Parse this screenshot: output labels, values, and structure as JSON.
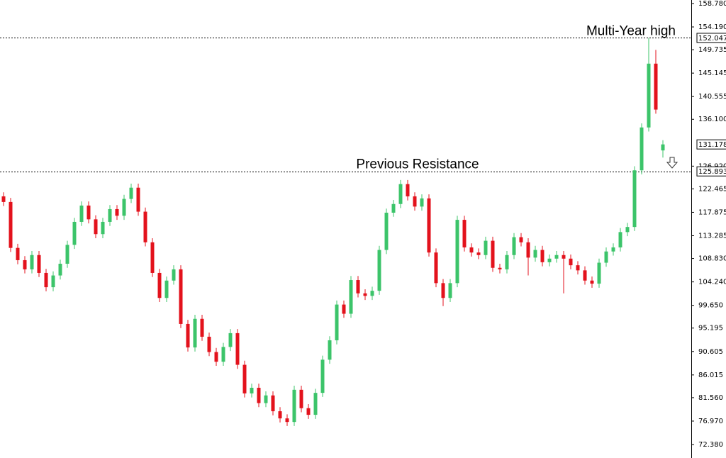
{
  "chart_data": {
    "type": "candlestick",
    "up_color": "#3cc46a",
    "down_color": "#e3121c",
    "ylim": [
      69.74,
      159.47
    ],
    "yticks": [
      {
        "value": 158.78,
        "label": "158.780"
      },
      {
        "value": 154.19,
        "label": "154.190"
      },
      {
        "value": 149.735,
        "label": "149.735"
      },
      {
        "value": 145.145,
        "label": "145.145"
      },
      {
        "value": 140.555,
        "label": "140.555"
      },
      {
        "value": 136.1,
        "label": "136.100"
      },
      {
        "value": 126.92,
        "label": "126.920"
      },
      {
        "value": 122.465,
        "label": "122.465"
      },
      {
        "value": 117.875,
        "label": "117.875"
      },
      {
        "value": 113.285,
        "label": "113.285"
      },
      {
        "value": 108.83,
        "label": "108.830"
      },
      {
        "value": 104.24,
        "label": "104.240"
      },
      {
        "value": 99.65,
        "label": "99.650"
      },
      {
        "value": 95.195,
        "label": "95.195"
      },
      {
        "value": 90.605,
        "label": "90.605"
      },
      {
        "value": 86.015,
        "label": "86.015"
      },
      {
        "value": 81.56,
        "label": "81.560"
      },
      {
        "value": 76.97,
        "label": "76.970"
      },
      {
        "value": 72.38,
        "label": "72.380"
      }
    ],
    "levels": [
      {
        "value": 152.047,
        "annotation": "Multi-Year high"
      },
      {
        "value": 125.893,
        "annotation": "Previous Resistance"
      }
    ],
    "open": [
      121.0,
      119.9,
      110.9,
      108.5,
      106.7,
      109.5,
      106.0,
      103.2,
      105.5,
      107.8,
      111.5,
      116.0,
      119.2,
      116.5,
      113.6,
      116.0,
      118.5,
      117.2,
      120.5,
      122.7,
      118.0,
      112.0,
      106.0,
      101.1,
      104.5,
      106.7,
      96.0,
      91.4,
      97.0,
      93.5,
      90.5,
      88.6,
      91.5,
      94.2,
      88.0,
      82.4,
      83.5,
      80.5,
      82.0,
      78.9,
      77.5,
      76.8,
      83.1,
      79.5,
      78.2,
      82.5,
      89.0,
      92.8,
      99.8,
      98.0,
      104.6,
      102.0,
      101.5,
      102.5,
      110.5,
      117.8,
      119.5,
      123.4,
      121.0,
      119.0,
      120.6,
      110.0,
      104.0,
      101.1,
      104.0,
      116.4,
      111.0,
      110.0,
      109.5,
      112.3,
      107.0,
      106.7,
      109.5,
      113.0,
      112.0,
      109.0,
      110.5,
      108.1,
      108.8,
      109.5,
      108.8,
      107.5,
      106.5,
      104.5,
      103.9,
      108.0,
      110.2,
      111.0,
      114.0,
      115.0,
      126.1,
      134.5,
      147.0,
      130.0
    ],
    "high": [
      121.8,
      120.7,
      111.7,
      109.3,
      110.3,
      110.3,
      106.8,
      106.3,
      108.6,
      112.3,
      116.8,
      120.0,
      120.0,
      117.3,
      116.8,
      119.3,
      119.3,
      121.3,
      123.5,
      123.5,
      118.8,
      112.8,
      106.8,
      105.3,
      107.5,
      107.5,
      96.8,
      97.8,
      97.8,
      94.3,
      91.3,
      92.3,
      95.0,
      95.0,
      88.8,
      84.3,
      84.3,
      82.8,
      82.8,
      79.7,
      78.3,
      83.9,
      83.9,
      80.3,
      83.3,
      89.8,
      93.6,
      100.6,
      100.6,
      105.4,
      105.4,
      102.8,
      103.3,
      111.3,
      118.6,
      120.3,
      124.2,
      124.2,
      121.8,
      121.4,
      121.4,
      110.8,
      104.8,
      104.8,
      117.2,
      117.2,
      111.8,
      110.8,
      113.1,
      113.1,
      107.8,
      110.3,
      113.8,
      113.8,
      112.8,
      111.3,
      111.3,
      109.6,
      110.3,
      110.3,
      109.6,
      108.3,
      107.3,
      105.3,
      108.8,
      111.0,
      111.8,
      114.8,
      115.8,
      126.9,
      135.3,
      152.047,
      149.7,
      132.0
    ],
    "low": [
      119.1,
      110.1,
      107.7,
      105.9,
      105.9,
      105.2,
      102.4,
      102.4,
      104.7,
      107.0,
      110.7,
      115.2,
      115.7,
      112.8,
      112.8,
      115.2,
      116.4,
      116.4,
      119.7,
      117.2,
      111.2,
      105.2,
      100.3,
      100.3,
      103.7,
      95.2,
      90.6,
      90.6,
      92.7,
      89.7,
      87.8,
      87.8,
      90.7,
      87.2,
      81.6,
      81.6,
      79.7,
      79.7,
      78.1,
      76.7,
      76.0,
      76.0,
      78.7,
      77.4,
      77.4,
      81.7,
      88.2,
      92.0,
      97.2,
      97.2,
      101.2,
      100.7,
      100.7,
      101.7,
      109.7,
      117.0,
      118.7,
      120.2,
      118.2,
      118.2,
      109.2,
      103.2,
      99.5,
      100.3,
      103.2,
      110.2,
      109.2,
      108.7,
      108.7,
      106.2,
      105.9,
      105.9,
      108.7,
      111.2,
      105.5,
      108.2,
      107.3,
      107.3,
      108.0,
      102.0,
      106.7,
      105.7,
      103.7,
      103.1,
      103.1,
      107.2,
      109.4,
      110.2,
      113.2,
      114.2,
      125.3,
      133.7,
      137.2,
      128.6
    ],
    "close": [
      119.9,
      110.9,
      108.5,
      106.7,
      109.5,
      106.0,
      103.2,
      105.5,
      107.8,
      111.5,
      116.0,
      119.2,
      116.5,
      113.6,
      116.0,
      118.5,
      117.2,
      120.5,
      122.7,
      118.0,
      112.0,
      106.0,
      101.1,
      104.5,
      106.7,
      96.0,
      91.4,
      97.0,
      93.5,
      90.5,
      88.6,
      91.5,
      94.2,
      88.0,
      82.4,
      83.5,
      80.5,
      82.0,
      78.9,
      77.5,
      76.8,
      83.1,
      79.5,
      78.2,
      82.5,
      89.0,
      92.8,
      99.8,
      98.0,
      104.6,
      102.0,
      101.5,
      102.5,
      110.5,
      117.8,
      119.5,
      123.4,
      121.0,
      119.0,
      120.6,
      110.0,
      104.0,
      101.1,
      104.0,
      116.4,
      111.0,
      110.0,
      109.5,
      112.3,
      107.0,
      106.7,
      109.5,
      113.0,
      112.0,
      109.0,
      110.5,
      108.1,
      108.8,
      109.5,
      108.8,
      107.5,
      106.5,
      104.5,
      103.9,
      108.0,
      110.2,
      111.0,
      114.0,
      115.0,
      126.1,
      134.5,
      147.0,
      138.0,
      131.178
    ]
  }
}
